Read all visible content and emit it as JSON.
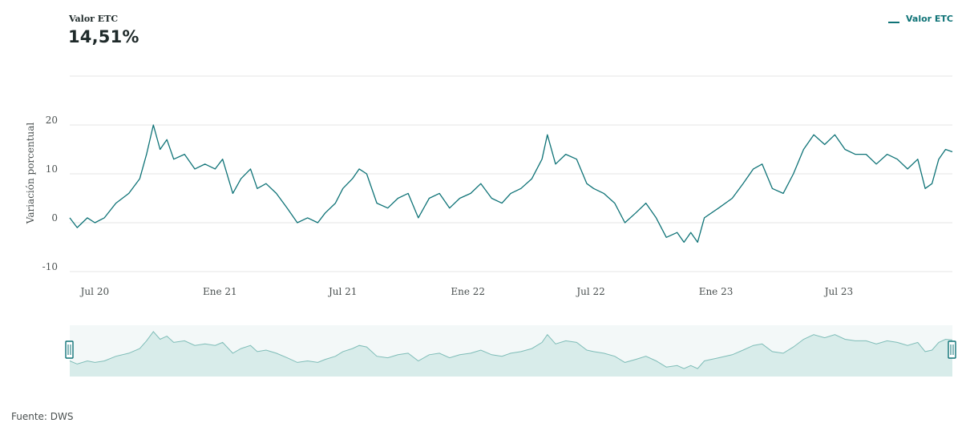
{
  "header": {
    "series_title": "Valor ETC",
    "current_value": "14,51%"
  },
  "legend": {
    "label": "Valor ETC"
  },
  "footer": {
    "source": "Fuente: DWS"
  },
  "colors": {
    "line": "#0f7377",
    "navigator_fill": "#d8ecea",
    "navigator_line": "#7fbdb8",
    "grid": "#e4e6e6"
  },
  "chart_data": {
    "type": "line",
    "title": "Valor ETC",
    "ylabel": "Variación porcentual",
    "xlabel": "",
    "ylim": [
      -10,
      25
    ],
    "y_ticks": [
      20,
      10,
      0,
      -10
    ],
    "x_ticks": [
      {
        "label": "Jul 20",
        "date": "2020-07-01"
      },
      {
        "label": "Ene 21",
        "date": "2021-01-01"
      },
      {
        "label": "Jul 21",
        "date": "2021-07-01"
      },
      {
        "label": "Ene 22",
        "date": "2022-01-01"
      },
      {
        "label": "Jul 22",
        "date": "2022-07-01"
      },
      {
        "label": "Ene 23",
        "date": "2023-01-01"
      },
      {
        "label": "Jul 23",
        "date": "2023-07-01"
      }
    ],
    "x_range": [
      "2020-05-25",
      "2023-12-15"
    ],
    "series": [
      {
        "name": "Valor ETC",
        "points": [
          [
            "2020-05-25",
            1
          ],
          [
            "2020-06-05",
            -1
          ],
          [
            "2020-06-20",
            1
          ],
          [
            "2020-07-01",
            0
          ],
          [
            "2020-07-15",
            1
          ],
          [
            "2020-08-01",
            4
          ],
          [
            "2020-08-20",
            6
          ],
          [
            "2020-09-05",
            9
          ],
          [
            "2020-09-15",
            14
          ],
          [
            "2020-09-25",
            20
          ],
          [
            "2020-10-05",
            15
          ],
          [
            "2020-10-15",
            17
          ],
          [
            "2020-10-25",
            13
          ],
          [
            "2020-11-10",
            14
          ],
          [
            "2020-11-25",
            11
          ],
          [
            "2020-12-10",
            12
          ],
          [
            "2020-12-25",
            11
          ],
          [
            "2021-01-05",
            13
          ],
          [
            "2021-01-20",
            6
          ],
          [
            "2021-02-01",
            9
          ],
          [
            "2021-02-15",
            11
          ],
          [
            "2021-02-25",
            7
          ],
          [
            "2021-03-10",
            8
          ],
          [
            "2021-03-25",
            6
          ],
          [
            "2021-04-10",
            3
          ],
          [
            "2021-04-25",
            0
          ],
          [
            "2021-05-10",
            1
          ],
          [
            "2021-05-25",
            0
          ],
          [
            "2021-06-05",
            2
          ],
          [
            "2021-06-20",
            4
          ],
          [
            "2021-07-01",
            7
          ],
          [
            "2021-07-15",
            9
          ],
          [
            "2021-07-25",
            11
          ],
          [
            "2021-08-05",
            10
          ],
          [
            "2021-08-20",
            4
          ],
          [
            "2021-09-05",
            3
          ],
          [
            "2021-09-20",
            5
          ],
          [
            "2021-10-05",
            6
          ],
          [
            "2021-10-20",
            1
          ],
          [
            "2021-11-05",
            5
          ],
          [
            "2021-11-20",
            6
          ],
          [
            "2021-12-05",
            3
          ],
          [
            "2021-12-20",
            5
          ],
          [
            "2022-01-05",
            6
          ],
          [
            "2022-01-20",
            8
          ],
          [
            "2022-02-05",
            5
          ],
          [
            "2022-02-20",
            4
          ],
          [
            "2022-03-05",
            6
          ],
          [
            "2022-03-20",
            7
          ],
          [
            "2022-04-05",
            9
          ],
          [
            "2022-04-20",
            13
          ],
          [
            "2022-04-28",
            18
          ],
          [
            "2022-05-10",
            12
          ],
          [
            "2022-05-25",
            14
          ],
          [
            "2022-06-10",
            13
          ],
          [
            "2022-06-25",
            8
          ],
          [
            "2022-07-05",
            7
          ],
          [
            "2022-07-20",
            6
          ],
          [
            "2022-08-05",
            4
          ],
          [
            "2022-08-20",
            0
          ],
          [
            "2022-09-05",
            2
          ],
          [
            "2022-09-20",
            4
          ],
          [
            "2022-10-05",
            1
          ],
          [
            "2022-10-20",
            -3
          ],
          [
            "2022-11-05",
            -2
          ],
          [
            "2022-11-15",
            -4
          ],
          [
            "2022-11-25",
            -2
          ],
          [
            "2022-12-05",
            -4
          ],
          [
            "2022-12-15",
            1
          ],
          [
            "2023-01-05",
            3
          ],
          [
            "2023-01-25",
            5
          ],
          [
            "2023-02-10",
            8
          ],
          [
            "2023-02-25",
            11
          ],
          [
            "2023-03-10",
            12
          ],
          [
            "2023-03-25",
            7
          ],
          [
            "2023-04-10",
            6
          ],
          [
            "2023-04-25",
            10
          ],
          [
            "2023-05-10",
            15
          ],
          [
            "2023-05-25",
            18
          ],
          [
            "2023-06-10",
            16
          ],
          [
            "2023-06-25",
            18
          ],
          [
            "2023-07-10",
            15
          ],
          [
            "2023-07-25",
            14
          ],
          [
            "2023-08-10",
            14
          ],
          [
            "2023-08-25",
            12
          ],
          [
            "2023-09-10",
            14
          ],
          [
            "2023-09-25",
            13
          ],
          [
            "2023-10-10",
            11
          ],
          [
            "2023-10-25",
            13
          ],
          [
            "2023-11-05",
            7
          ],
          [
            "2023-11-15",
            8
          ],
          [
            "2023-11-25",
            13
          ],
          [
            "2023-12-05",
            15
          ],
          [
            "2023-12-15",
            14.51
          ]
        ]
      }
    ],
    "grid": true,
    "legend_position": "top-right",
    "navigator": true
  }
}
